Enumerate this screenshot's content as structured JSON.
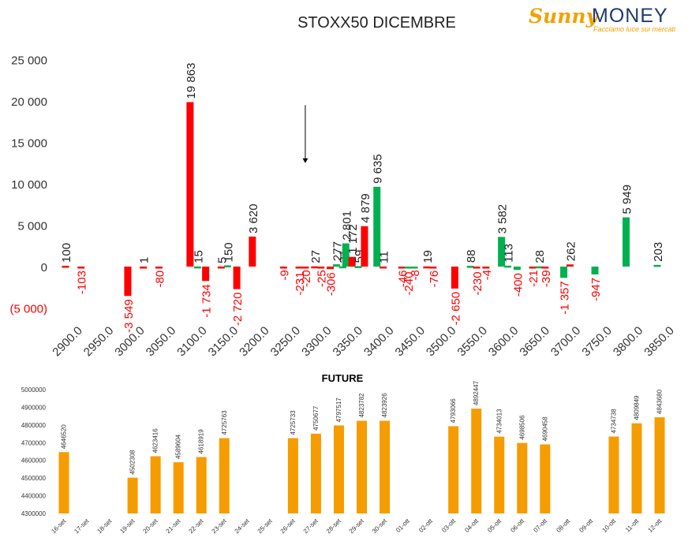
{
  "logo": {
    "word1": "Sunny",
    "word2": "MONEY",
    "tagline": "Facciamo luce sui mercati"
  },
  "colors": {
    "call": "#00b050",
    "put": "#ff0000",
    "future": "#f59c00",
    "negative_label": "#ff0000"
  },
  "chart_data": [
    {
      "type": "bar",
      "title": "STOXX50 DICEMBRE",
      "categories": [
        "2900.0",
        "2950.0",
        "3000.0",
        "3050.0",
        "3100.0",
        "3150.0",
        "3200.0",
        "3250.0",
        "3300.0",
        "3350.0",
        "3400.0",
        "3450.0",
        "3500.0",
        "3550.0",
        "3600.0",
        "3650.0",
        "3700.0",
        "3750.0",
        "3800.0",
        "3850.0"
      ],
      "ylim": [
        -5000,
        25000
      ],
      "yticks": [
        "(5 000)",
        "0",
        "5 000",
        "10 000",
        "15 000",
        "20 000",
        "25 000"
      ],
      "grid": false,
      "bars": [
        {
          "strike": 2900,
          "value": 100,
          "series": "put",
          "label": "100"
        },
        {
          "strike": 2925,
          "value": -103,
          "series": "put",
          "label": "-103"
        },
        {
          "strike": 3000,
          "value": -3549,
          "series": "put",
          "label": "-3 549"
        },
        {
          "strike": 3025,
          "value": 1,
          "series": "put",
          "label": "1"
        },
        {
          "strike": 3050,
          "value": -80,
          "series": "put",
          "label": "-80"
        },
        {
          "strike": 3100,
          "value": 19863,
          "series": "put",
          "label": "19 863"
        },
        {
          "strike": 3125,
          "value": -1734,
          "series": "put",
          "label": "-1 734"
        },
        {
          "strike": 3112,
          "value": 15,
          "series": "call",
          "label": "15"
        },
        {
          "strike": 3150,
          "value": 5,
          "series": "put",
          "label": "5"
        },
        {
          "strike": 3160,
          "value": 150,
          "series": "call",
          "label": "150"
        },
        {
          "strike": 3175,
          "value": -2720,
          "series": "put",
          "label": "-2 720"
        },
        {
          "strike": 3200,
          "value": 3620,
          "series": "put",
          "label": "3 620"
        },
        {
          "strike": 3250,
          "value": -9,
          "series": "put",
          "label": "-9"
        },
        {
          "strike": 3275,
          "value": -231,
          "series": "put",
          "label": "-231"
        },
        {
          "strike": 3285,
          "value": -20,
          "series": "put",
          "label": "-20"
        },
        {
          "strike": 3300,
          "value": 27,
          "series": "put",
          "label": "27"
        },
        {
          "strike": 3310,
          "value": -25,
          "series": "put",
          "label": "-25"
        },
        {
          "strike": 3325,
          "value": -306,
          "series": "put",
          "label": "-306"
        },
        {
          "strike": 3335,
          "value": 277,
          "series": "call",
          "label": "277"
        },
        {
          "strike": 3345,
          "value": 31,
          "series": "call",
          "label": "31"
        },
        {
          "strike": 3350,
          "value": 2801,
          "series": "call",
          "label": "2 801"
        },
        {
          "strike": 3360,
          "value": 1172,
          "series": "put",
          "label": "1 172"
        },
        {
          "strike": 3370,
          "value": 59,
          "series": "call",
          "label": "59"
        },
        {
          "strike": 3380,
          "value": 4879,
          "series": "put",
          "label": "4 879"
        },
        {
          "strike": 3400,
          "value": 9635,
          "series": "call",
          "label": "9 635"
        },
        {
          "strike": 3410,
          "value": 11,
          "series": "put",
          "label": "11"
        },
        {
          "strike": 3440,
          "value": -46,
          "series": "put",
          "label": "-46"
        },
        {
          "strike": 3450,
          "value": -240,
          "series": "call",
          "label": "-240"
        },
        {
          "strike": 3460,
          "value": -8,
          "series": "call",
          "label": "-8"
        },
        {
          "strike": 3480,
          "value": 19,
          "series": "put",
          "label": "19"
        },
        {
          "strike": 3490,
          "value": -76,
          "series": "put",
          "label": "-76"
        },
        {
          "strike": 3525,
          "value": -2650,
          "series": "put",
          "label": "-2 650"
        },
        {
          "strike": 3550,
          "value": 88,
          "series": "call",
          "label": "88"
        },
        {
          "strike": 3560,
          "value": -230,
          "series": "put",
          "label": "-230"
        },
        {
          "strike": 3575,
          "value": -4,
          "series": "put",
          "label": "-4"
        },
        {
          "strike": 3600,
          "value": 3582,
          "series": "call",
          "label": "3 582"
        },
        {
          "strike": 3610,
          "value": 113,
          "series": "call",
          "label": "113"
        },
        {
          "strike": 3625,
          "value": -400,
          "series": "call",
          "label": "-400"
        },
        {
          "strike": 3650,
          "value": -21,
          "series": "put",
          "label": "-21"
        },
        {
          "strike": 3660,
          "value": 28,
          "series": "call",
          "label": "28"
        },
        {
          "strike": 3670,
          "value": -39,
          "series": "put",
          "label": "-39"
        },
        {
          "strike": 3700,
          "value": -1357,
          "series": "call",
          "label": "-1 357"
        },
        {
          "strike": 3710,
          "value": 262,
          "series": "put",
          "label": "262"
        },
        {
          "strike": 3750,
          "value": -947,
          "series": "call",
          "label": "-947"
        },
        {
          "strike": 3800,
          "value": 5949,
          "series": "call",
          "label": "5 949"
        },
        {
          "strike": 3850,
          "value": 203,
          "series": "call",
          "label": "203"
        }
      ],
      "annotations": [
        {
          "type": "arrow-down",
          "x": 3285,
          "from": 19500,
          "to": 12500
        }
      ]
    },
    {
      "type": "bar",
      "title": "FUTURE",
      "categories": [
        "16-set",
        "17-set",
        "18-set",
        "19-set",
        "20-set",
        "21-set",
        "22-set",
        "23-set",
        "24-set",
        "25-set",
        "26-set",
        "27-set",
        "28-set",
        "29-set",
        "30-set",
        "01-ott",
        "02-ott",
        "03-ott",
        "04-ott",
        "05-ott",
        "06-ott",
        "07-ott",
        "08-ott",
        "09-ott",
        "10-ott",
        "11-ott",
        "12-ott"
      ],
      "values": [
        4646520,
        null,
        null,
        4502308,
        4623416,
        4589604,
        4618919,
        4725763,
        null,
        null,
        4725733,
        4750677,
        4797517,
        4823782,
        4823926,
        null,
        null,
        4793066,
        4892447,
        4734013,
        4698506,
        4690458,
        null,
        null,
        4734738,
        4809849,
        4843680
      ],
      "ylim": [
        4300000,
        5000000
      ],
      "yticks": [
        "4300000",
        "4400000",
        "4500000",
        "4600000",
        "4700000",
        "4800000",
        "4900000",
        "5000000"
      ],
      "grid": false
    }
  ]
}
